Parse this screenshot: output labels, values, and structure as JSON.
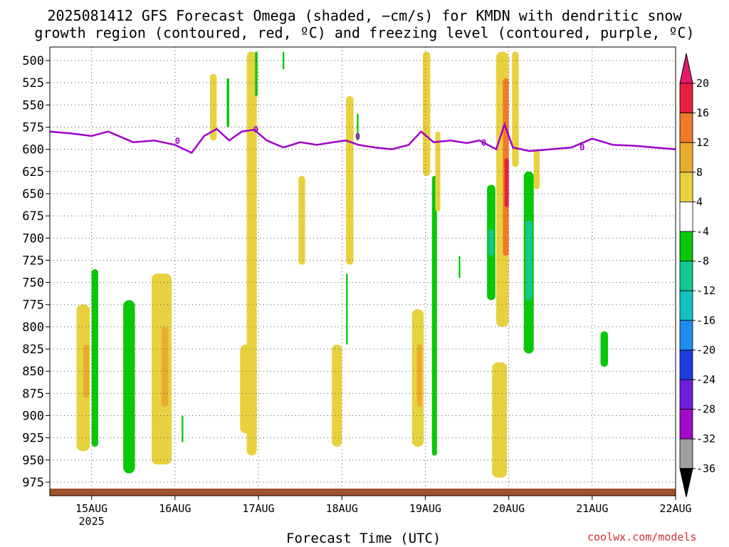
{
  "title_line1": "2025081412 GFS Forecast Omega (shaded, −cm/s) for KMDN with dendritic snow",
  "title_line2": "growth region (contoured, red, ºC) and freezing level (contoured, purple, ºC)",
  "credit": "coolwx.com/models",
  "chart_data": {
    "type": "heatmap",
    "title": "2025081412 GFS Forecast Omega (shaded, −cm/s) for KMDN with dendritic snow growth region (contoured, red, ºC) and freezing level (contoured, purple, ºC)",
    "xlabel": "Forecast Time (UTC)",
    "ylabel": "",
    "x_axis": {
      "min_day": 14.5,
      "max_day": 22.0,
      "ticks": [
        {
          "day": 15,
          "label": "15AUG",
          "sub": "2025"
        },
        {
          "day": 16,
          "label": "16AUG",
          "sub": ""
        },
        {
          "day": 17,
          "label": "17AUG",
          "sub": ""
        },
        {
          "day": 18,
          "label": "18AUG",
          "sub": ""
        },
        {
          "day": 19,
          "label": "19AUG",
          "sub": ""
        },
        {
          "day": 20,
          "label": "20AUG",
          "sub": ""
        },
        {
          "day": 21,
          "label": "21AUG",
          "sub": ""
        },
        {
          "day": 22,
          "label": "22AUG",
          "sub": ""
        }
      ]
    },
    "y_axis": {
      "ticks": [
        500,
        525,
        550,
        575,
        600,
        625,
        650,
        675,
        700,
        725,
        750,
        775,
        800,
        825,
        850,
        875,
        900,
        925,
        950,
        975
      ],
      "ylim": [
        495,
        995
      ],
      "grid": true
    },
    "colorbar": {
      "levels": [
        "20",
        "16",
        "12",
        "8",
        "4",
        "-4",
        "-8",
        "-12",
        "-16",
        "-20",
        "-24",
        "-28",
        "-32",
        "-36"
      ],
      "colors": [
        "#e61f3c",
        "#ef7a27",
        "#e9ad2e",
        "#e8d13e",
        "#ffffff",
        "#08c808",
        "#12c890",
        "#12c0c0",
        "#1e8cf0",
        "#1e3cdc",
        "#6e1edc",
        "#a00ac8",
        "#a0a0a0"
      ],
      "top_color": "#e6196e",
      "bottom_color": "#000000"
    },
    "omega_regions": [
      {
        "t0": 14.82,
        "t1": 14.98,
        "p0": 775,
        "p1": 940,
        "value": 6
      },
      {
        "t0": 14.9,
        "t1": 14.97,
        "p0": 820,
        "p1": 880,
        "value": 9
      },
      {
        "t0": 15.0,
        "t1": 15.08,
        "p0": 735,
        "p1": 935,
        "value": -6
      },
      {
        "t0": 15.38,
        "t1": 15.52,
        "p0": 770,
        "p1": 965,
        "value": -6
      },
      {
        "t0": 15.72,
        "t1": 15.96,
        "p0": 740,
        "p1": 955,
        "value": 6
      },
      {
        "t0": 15.84,
        "t1": 15.92,
        "p0": 800,
        "p1": 890,
        "value": 9
      },
      {
        "t0": 16.08,
        "t1": 16.1,
        "p0": 900,
        "p1": 930,
        "value": -6
      },
      {
        "t0": 16.42,
        "t1": 16.5,
        "p0": 515,
        "p1": 590,
        "value": 5
      },
      {
        "t0": 16.62,
        "t1": 16.65,
        "p0": 520,
        "p1": 575,
        "value": -6
      },
      {
        "t0": 16.78,
        "t1": 16.98,
        "p0": 820,
        "p1": 920,
        "value": 6
      },
      {
        "t0": 16.86,
        "t1": 16.98,
        "p0": 490,
        "p1": 945,
        "value": 5
      },
      {
        "t0": 16.96,
        "t1": 16.99,
        "p0": 490,
        "p1": 540,
        "value": -6
      },
      {
        "t0": 17.29,
        "t1": 17.31,
        "p0": 490,
        "p1": 510,
        "value": -6
      },
      {
        "t0": 17.48,
        "t1": 17.56,
        "p0": 630,
        "p1": 730,
        "value": 5
      },
      {
        "t0": 17.88,
        "t1": 18.0,
        "p0": 820,
        "p1": 935,
        "value": 6
      },
      {
        "t0": 18.05,
        "t1": 18.14,
        "p0": 540,
        "p1": 730,
        "value": 5
      },
      {
        "t0": 18.05,
        "t1": 18.07,
        "p0": 740,
        "p1": 820,
        "value": -6
      },
      {
        "t0": 18.18,
        "t1": 18.2,
        "p0": 560,
        "p1": 590,
        "value": -6
      },
      {
        "t0": 18.84,
        "t1": 18.98,
        "p0": 780,
        "p1": 935,
        "value": 6
      },
      {
        "t0": 18.9,
        "t1": 18.96,
        "p0": 820,
        "p1": 890,
        "value": 9
      },
      {
        "t0": 18.97,
        "t1": 19.06,
        "p0": 490,
        "p1": 630,
        "value": 5
      },
      {
        "t0": 19.08,
        "t1": 19.14,
        "p0": 630,
        "p1": 945,
        "value": -6
      },
      {
        "t0": 19.12,
        "t1": 19.18,
        "p0": 580,
        "p1": 670,
        "value": 5
      },
      {
        "t0": 19.4,
        "t1": 19.42,
        "p0": 720,
        "p1": 745,
        "value": -6
      },
      {
        "t0": 19.74,
        "t1": 19.84,
        "p0": 640,
        "p1": 770,
        "value": -6
      },
      {
        "t0": 19.76,
        "t1": 19.82,
        "p0": 690,
        "p1": 720,
        "value": -10
      },
      {
        "t0": 19.85,
        "t1": 20.0,
        "p0": 490,
        "p1": 800,
        "value": 5
      },
      {
        "t0": 19.93,
        "t1": 20.0,
        "p0": 520,
        "p1": 720,
        "value": 12
      },
      {
        "t0": 19.95,
        "t1": 20.0,
        "p0": 610,
        "p1": 665,
        "value": 18
      },
      {
        "t0": 19.8,
        "t1": 19.98,
        "p0": 840,
        "p1": 970,
        "value": 6
      },
      {
        "t0": 20.04,
        "t1": 20.12,
        "p0": 490,
        "p1": 620,
        "value": 5
      },
      {
        "t0": 20.18,
        "t1": 20.3,
        "p0": 625,
        "p1": 830,
        "value": -6
      },
      {
        "t0": 20.2,
        "t1": 20.28,
        "p0": 680,
        "p1": 770,
        "value": -10
      },
      {
        "t0": 20.3,
        "t1": 20.37,
        "p0": 600,
        "p1": 645,
        "value": 5
      },
      {
        "t0": 21.1,
        "t1": 21.19,
        "p0": 805,
        "p1": 845,
        "value": -6
      }
    ],
    "freezing_level": {
      "name": "0",
      "color": "#a000c8",
      "t": [
        14.5,
        14.75,
        15.0,
        15.2,
        15.5,
        15.75,
        16.0,
        16.2,
        16.35,
        16.5,
        16.65,
        16.8,
        16.95,
        17.1,
        17.3,
        17.5,
        17.7,
        17.9,
        18.05,
        18.2,
        18.4,
        18.6,
        18.8,
        18.95,
        19.1,
        19.3,
        19.5,
        19.65,
        19.85,
        19.95,
        20.05,
        20.25,
        20.5,
        20.75,
        21.0,
        21.25,
        21.5,
        21.75,
        22.0
      ],
      "p": [
        580,
        582,
        585,
        580,
        592,
        590,
        595,
        604,
        585,
        577,
        590,
        580,
        578,
        590,
        598,
        592,
        595,
        592,
        590,
        595,
        598,
        600,
        595,
        580,
        592,
        590,
        593,
        590,
        600,
        572,
        598,
        602,
        600,
        598,
        588,
        595,
        596,
        598,
        600
      ]
    }
  }
}
